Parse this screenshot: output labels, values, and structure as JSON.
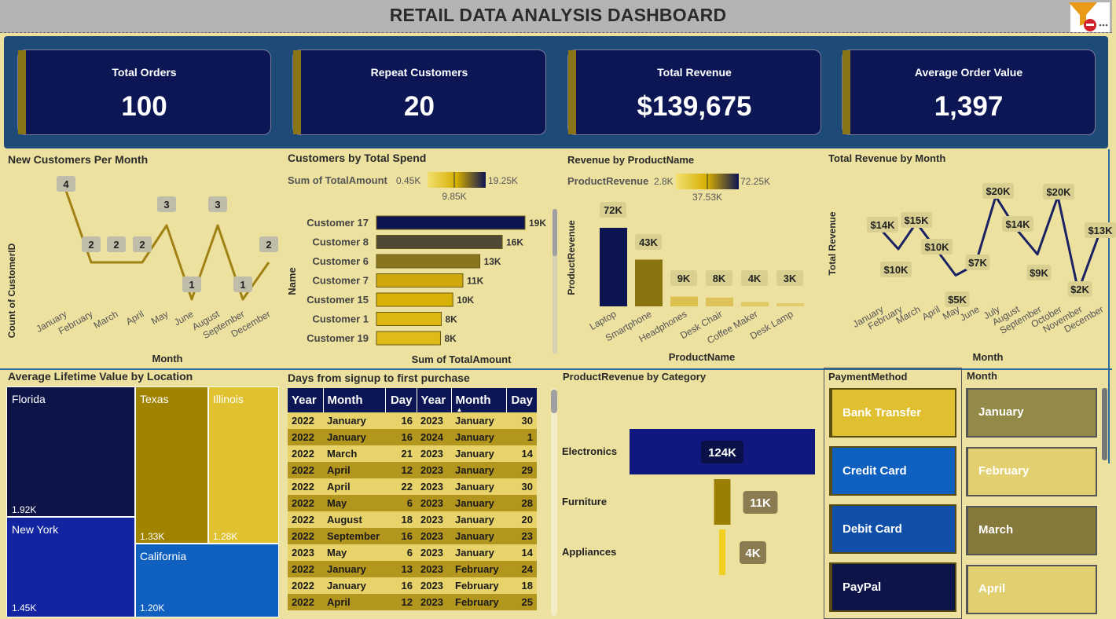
{
  "title": "RETAIL DATA ANALYSIS DASHBOARD",
  "kpis": [
    {
      "label": "Total Orders",
      "value": "100"
    },
    {
      "label": "Repeat Customers",
      "value": "20"
    },
    {
      "label": "Total Revenue",
      "value": "$139,675"
    },
    {
      "label": "Average Order Value",
      "value": "1,397"
    }
  ],
  "new_customers": {
    "title": "New Customers Per Month",
    "xlabel": "Month",
    "ylabel": "Count of CustomerID",
    "line_color": "#a08214",
    "chart_data": {
      "type": "line",
      "categories": [
        "January",
        "February",
        "March",
        "April",
        "May",
        "June",
        "August",
        "September",
        "December"
      ],
      "values": [
        4,
        2,
        2,
        2,
        3,
        1,
        3,
        1,
        2
      ],
      "labels": [
        "4",
        "2",
        "2",
        "2",
        "3",
        "1",
        "3",
        "1",
        "2"
      ]
    }
  },
  "total_spend": {
    "title": "Customers by Total Spend",
    "legend_label": "Sum of TotalAmount",
    "legend_min": "0.45K",
    "legend_mid": "9.85K",
    "legend_max": "19.25K",
    "xlabel": "Sum of TotalAmount",
    "ylabel": "Name",
    "chart_data": {
      "type": "bar",
      "categories": [
        "Customer 17",
        "Customer 8",
        "Customer 6",
        "Customer 7",
        "Customer 15",
        "Customer 1",
        "Customer 19"
      ],
      "values": [
        19.25,
        16.3,
        13.4,
        11.2,
        9.9,
        8.4,
        8.3
      ],
      "labels": [
        "19K",
        "16K",
        "13K",
        "11K",
        "10K",
        "8K",
        "8K"
      ],
      "colors": [
        "#0e1452",
        "#4f4a36",
        "#8a7420",
        "#cfa80c",
        "#d9b208",
        "#ddb812",
        "#dfbb18"
      ]
    }
  },
  "product_rev": {
    "title": "Revenue by ProductName",
    "legend_label": "ProductRevenue",
    "legend_min": "2.8K",
    "legend_mid": "37.53K",
    "legend_max": "72.25K",
    "xlabel": "ProductName",
    "ylabel": "ProductRevenue",
    "chart_data": {
      "type": "bar",
      "categories": [
        "Laptop",
        "Smartphone",
        "Headphones",
        "Desk Chair",
        "Coffee Maker",
        "Desk Lamp"
      ],
      "values": [
        72.25,
        43,
        9,
        8,
        4,
        2.8
      ],
      "labels": [
        "72K",
        "43K",
        "9K",
        "8K",
        "4K",
        "3K"
      ],
      "colors": [
        "#0e1452",
        "#8a7410",
        "#dcc050",
        "#dcc258",
        "#e0c862",
        "#e2cb6a"
      ]
    }
  },
  "monthly_rev": {
    "title": "Total Revenue by Month",
    "xlabel": "Month",
    "ylabel": "Total Revenue",
    "line_color": "#1a2264",
    "chart_data": {
      "type": "line",
      "categories": [
        "January",
        "February",
        "March",
        "April",
        "May",
        "June",
        "July",
        "August",
        "September",
        "October",
        "November",
        "December"
      ],
      "values": [
        14,
        10,
        15,
        10,
        5,
        7,
        20,
        14,
        9,
        20,
        2,
        13
      ],
      "labels": [
        "$14K",
        "$10K",
        "$15K",
        "$10K",
        "$5K",
        "$7K",
        "$20K",
        "$14K",
        "$9K",
        "$20K",
        "$2K",
        "$13K"
      ]
    }
  },
  "treemap": {
    "title": "Average Lifetime Value by Location",
    "cells": [
      {
        "name": "Florida",
        "value": "1.92K",
        "color": "#0c1448"
      },
      {
        "name": "Texas",
        "value": "1.33K",
        "color": "#a08400"
      },
      {
        "name": "Illinois",
        "value": "1.28K",
        "color": "#e0c230"
      },
      {
        "name": "New York",
        "value": "1.45K",
        "color": "#1224a0"
      },
      {
        "name": "California",
        "value": "1.20K",
        "color": "#1060c0"
      }
    ]
  },
  "table": {
    "title": "Days from signup to first purchase",
    "headers": [
      "Year",
      "Month",
      "Day",
      "Year",
      "Month",
      "Day"
    ],
    "rows": [
      [
        "2022",
        "January",
        "16",
        "2023",
        "January",
        "30"
      ],
      [
        "2022",
        "January",
        "16",
        "2024",
        "January",
        "1"
      ],
      [
        "2022",
        "March",
        "21",
        "2023",
        "January",
        "14"
      ],
      [
        "2022",
        "April",
        "12",
        "2023",
        "January",
        "29"
      ],
      [
        "2022",
        "April",
        "22",
        "2023",
        "January",
        "30"
      ],
      [
        "2022",
        "May",
        "6",
        "2023",
        "January",
        "28"
      ],
      [
        "2022",
        "August",
        "18",
        "2023",
        "January",
        "20"
      ],
      [
        "2022",
        "September",
        "16",
        "2023",
        "January",
        "23"
      ],
      [
        "2023",
        "May",
        "6",
        "2023",
        "January",
        "14"
      ],
      [
        "2022",
        "January",
        "13",
        "2023",
        "February",
        "24"
      ],
      [
        "2022",
        "January",
        "16",
        "2023",
        "February",
        "18"
      ],
      [
        "2022",
        "April",
        "12",
        "2023",
        "February",
        "25"
      ]
    ]
  },
  "category_rev": {
    "title": "ProductRevenue by Category",
    "chart_data": {
      "type": "bar",
      "categories": [
        "Electronics",
        "Furniture",
        "Appliances"
      ],
      "values": [
        124,
        11,
        4
      ],
      "labels": [
        "124K",
        "11K",
        "4K"
      ],
      "colors": [
        "#101880",
        "#9a7e06",
        "#f0d020"
      ]
    }
  },
  "payment": {
    "title": "PaymentMethod",
    "items": [
      {
        "label": "Bank Transfer",
        "color": "#e0c030"
      },
      {
        "label": "Credit Card",
        "color": "#1060c0"
      },
      {
        "label": "Debit Card",
        "color": "#1050a8"
      },
      {
        "label": "PayPal",
        "color": "#0c1448"
      }
    ]
  },
  "month_slicer": {
    "title": "Month",
    "items": [
      {
        "label": "January",
        "color": "#948a48"
      },
      {
        "label": "February",
        "color": "#e2d070"
      },
      {
        "label": "March",
        "color": "#857a3c"
      },
      {
        "label": "April",
        "color": "#e2d070"
      }
    ]
  }
}
